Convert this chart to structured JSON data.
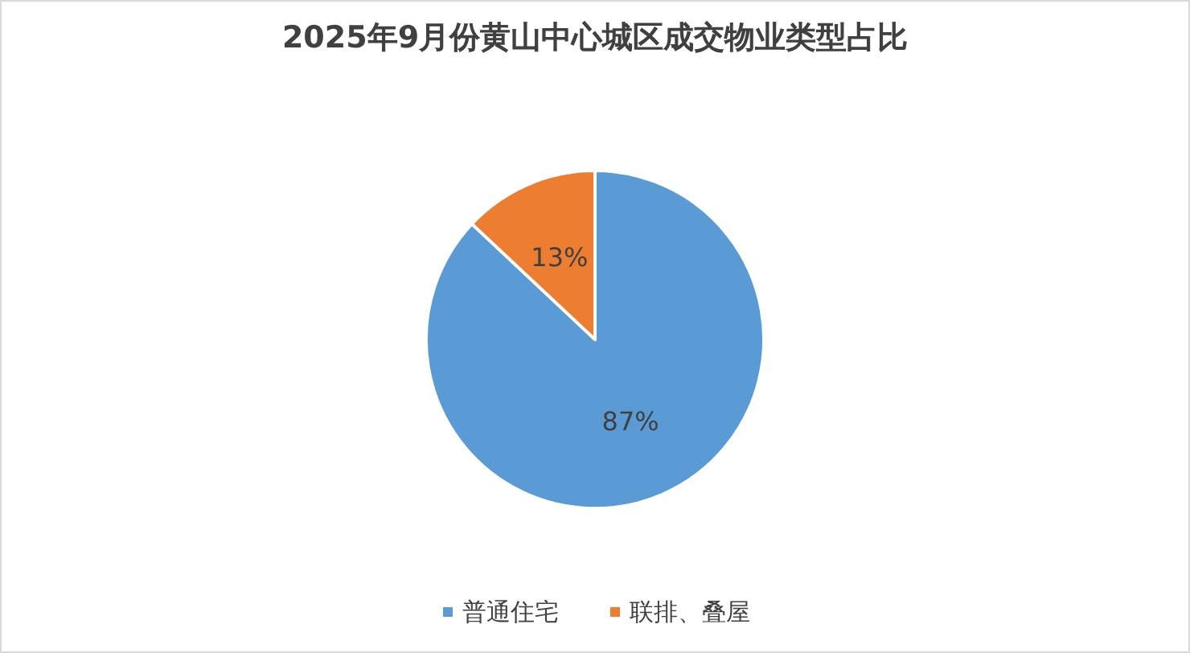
{
  "chart_data": {
    "type": "pie",
    "title": "2025年9月份黄山中心城区成交物业类型占比",
    "categories": [
      "普通住宅",
      "联排、叠屋"
    ],
    "values": [
      87,
      13
    ],
    "colors": [
      "#5b9bd5",
      "#ed7d31"
    ],
    "value_labels": [
      "87%",
      "13%"
    ],
    "legend": "bottom"
  }
}
